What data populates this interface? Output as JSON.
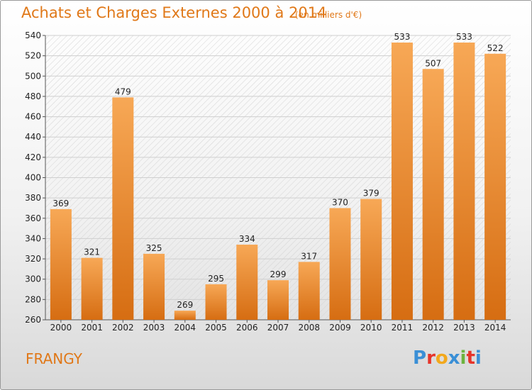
{
  "title": "Achats et Charges Externes 2000 à 2014",
  "subtitle": "(en milliers d'€)",
  "commune": "FRANGY",
  "logo": {
    "text": "Proxiti",
    "colors": [
      "#3a8fd6",
      "#e6342a",
      "#f2a81c",
      "#3a8fd6",
      "#6db33f",
      "#e6342a",
      "#3a8fd6"
    ]
  },
  "colors": {
    "accent": "#e07818",
    "bar_top": "#f7a856",
    "bar_bottom": "#d66d12"
  },
  "chart_data": {
    "type": "bar",
    "categories": [
      "2000",
      "2001",
      "2002",
      "2003",
      "2004",
      "2005",
      "2006",
      "2007",
      "2008",
      "2009",
      "2010",
      "2011",
      "2012",
      "2013",
      "2014"
    ],
    "values": [
      369,
      321,
      479,
      325,
      269,
      295,
      334,
      299,
      317,
      370,
      379,
      533,
      507,
      533,
      522
    ],
    "ylim": [
      260,
      540
    ],
    "yticks": [
      260,
      280,
      300,
      320,
      340,
      360,
      380,
      400,
      420,
      440,
      460,
      480,
      500,
      520,
      540
    ],
    "grid": true
  }
}
